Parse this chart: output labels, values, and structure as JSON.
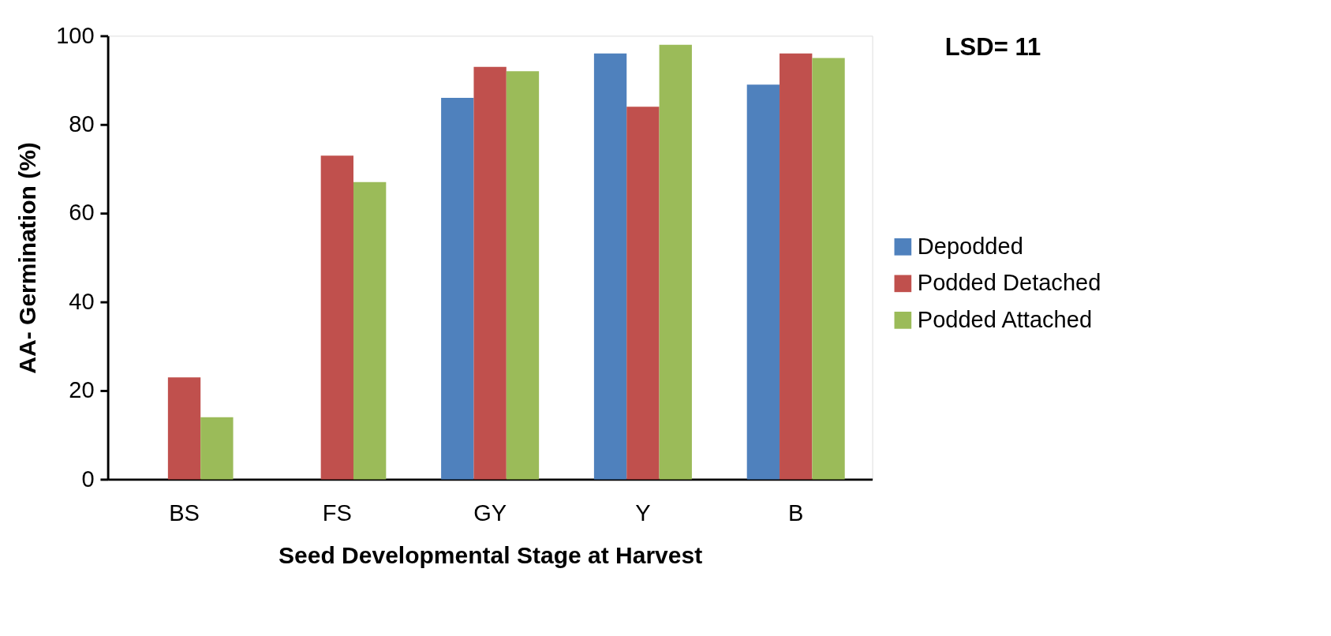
{
  "chart_data": {
    "type": "bar",
    "xlabel": "Seed Developmental Stage at Harvest",
    "ylabel": "AA- Germination (%)",
    "categories": [
      "BS",
      "FS",
      "GY",
      "Y",
      "B"
    ],
    "series": [
      {
        "name": "Depodded",
        "color": "#4f81bd",
        "values": [
          null,
          null,
          86,
          96,
          89
        ]
      },
      {
        "name": "Podded Detached",
        "color": "#c0504d",
        "values": [
          23,
          73,
          93,
          84,
          96
        ]
      },
      {
        "name": "Podded Attached",
        "color": "#9bbb59",
        "values": [
          14,
          67,
          92,
          98,
          95
        ]
      }
    ],
    "ylim": [
      0,
      100
    ],
    "yticks": [
      0,
      20,
      40,
      60,
      80,
      100
    ],
    "grid": false,
    "legend": "right",
    "annotations": [
      "LSD= 11"
    ]
  }
}
